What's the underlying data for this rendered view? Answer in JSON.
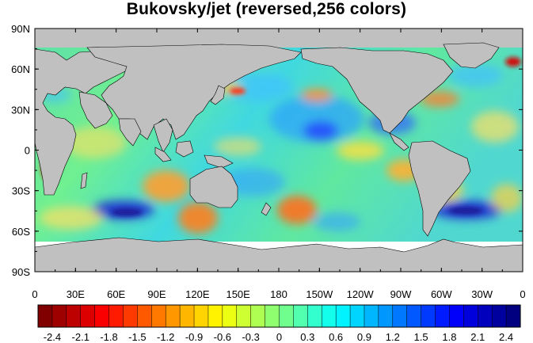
{
  "title": "Bukovsky/jet (reversed,256 colors)",
  "colors": {
    "land": "#c0c0c0",
    "background": "#ffffff",
    "palette_low": "#7f0000",
    "palette_mid": "#80ff80",
    "palette_high": "#00007f"
  },
  "map": {
    "projection": "cylindrical-equidistant",
    "center_longitude": 180,
    "lat_range": [
      -90,
      90
    ],
    "lon_range": [
      0,
      360
    ],
    "lat_tick_labels": [
      "90N",
      "60N",
      "30N",
      "0",
      "30S",
      "60S",
      "90S"
    ],
    "lon_tick_labels": [
      "0",
      "30E",
      "60E",
      "90E",
      "120E",
      "150E",
      "180",
      "150W",
      "120W",
      "90W",
      "60W",
      "30W",
      "0"
    ]
  },
  "colorbar": {
    "orientation": "horizontal",
    "min": -2.55,
    "max": 2.55,
    "boxes": 34,
    "labels": [
      "-2.4",
      "-2.1",
      "-1.8",
      "-1.5",
      "-1.2",
      "-0.9",
      "-0.6",
      "-0.3",
      "0",
      "0.3",
      "0.6",
      "0.9",
      "1.2",
      "1.5",
      "1.8",
      "2.1",
      "2.4"
    ]
  }
}
